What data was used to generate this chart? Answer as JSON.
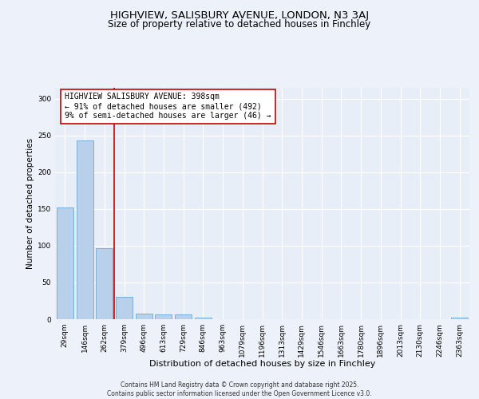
{
  "title1": "HIGHVIEW, SALISBURY AVENUE, LONDON, N3 3AJ",
  "title2": "Size of property relative to detached houses in Finchley",
  "xlabel": "Distribution of detached houses by size in Finchley",
  "ylabel": "Number of detached properties",
  "categories": [
    "29sqm",
    "146sqm",
    "262sqm",
    "379sqm",
    "496sqm",
    "613sqm",
    "729sqm",
    "846sqm",
    "963sqm",
    "1079sqm",
    "1196sqm",
    "1313sqm",
    "1429sqm",
    "1546sqm",
    "1663sqm",
    "1780sqm",
    "1896sqm",
    "2013sqm",
    "2130sqm",
    "2246sqm",
    "2363sqm"
  ],
  "values": [
    152,
    243,
    97,
    30,
    8,
    6,
    7,
    2,
    0,
    0,
    0,
    0,
    0,
    0,
    0,
    0,
    0,
    0,
    0,
    0,
    2
  ],
  "bar_color": "#b8d0ea",
  "bar_edgecolor": "#6aaad4",
  "background_color": "#e8eef8",
  "fig_background_color": "#edf1f9",
  "grid_color": "#ffffff",
  "redline_color": "#cc0000",
  "annotation_text": "HIGHVIEW SALISBURY AVENUE: 398sqm\n← 91% of detached houses are smaller (492)\n9% of semi-detached houses are larger (46) →",
  "annotation_box_edgecolor": "#cc0000",
  "ylim": [
    0,
    315
  ],
  "yticks": [
    0,
    50,
    100,
    150,
    200,
    250,
    300
  ],
  "footer": "Contains HM Land Registry data © Crown copyright and database right 2025.\nContains public sector information licensed under the Open Government Licence v3.0.",
  "title1_fontsize": 9.5,
  "title2_fontsize": 8.5,
  "xlabel_fontsize": 8,
  "ylabel_fontsize": 7.5,
  "tick_fontsize": 6.5,
  "annotation_fontsize": 7,
  "footer_fontsize": 5.5
}
